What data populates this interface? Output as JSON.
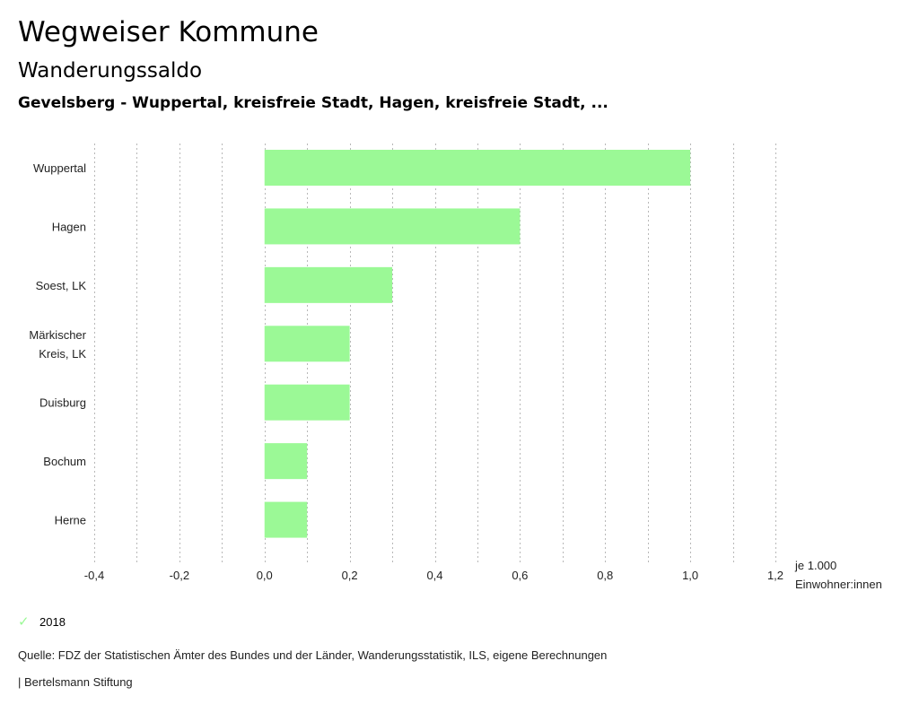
{
  "header": {
    "title": "Wegweiser Kommune",
    "subtitle": "Wanderungssaldo",
    "subsubtitle": "Gevelsberg - Wuppertal, kreisfreie Stadt, Hagen, kreisfreie Stadt, ..."
  },
  "chart_data": {
    "type": "bar",
    "orientation": "horizontal",
    "categories": [
      "Wuppertal",
      "Hagen",
      "Soest, LK",
      "Märkischer Kreis, LK",
      "Duisburg",
      "Bochum",
      "Herne"
    ],
    "category_lines": [
      [
        "Wuppertal"
      ],
      [
        "Hagen"
      ],
      [
        "Soest, LK"
      ],
      [
        "Märkischer",
        "Kreis, LK"
      ],
      [
        "Duisburg"
      ],
      [
        "Bochum"
      ],
      [
        "Herne"
      ]
    ],
    "series": [
      {
        "name": "2018",
        "values": [
          1.0,
          0.6,
          0.3,
          0.2,
          0.2,
          0.1,
          0.1
        ],
        "color": "#9bf996"
      }
    ],
    "xlim": [
      -0.4,
      1.2
    ],
    "xticks": [
      -0.4,
      -0.2,
      0.0,
      0.2,
      0.4,
      0.6,
      0.8,
      1.0,
      1.2
    ],
    "xtick_labels": [
      "-0,4",
      "-0,2",
      "0,0",
      "0,2",
      "0,4",
      "0,6",
      "0,8",
      "1,0",
      "1,2"
    ],
    "grid_step": 0.1,
    "grid": true,
    "xlabel_lines": [
      "je 1.000",
      "Einwohner:innen"
    ],
    "legend_position": "bottom-left"
  },
  "legend": {
    "label": "2018",
    "icon": "check-icon"
  },
  "footer": {
    "source": "Quelle: FDZ der Statistischen Ämter des Bundes und der Länder, Wanderungsstatistik, ILS, eigene Berechnungen",
    "credit": "| Bertelsmann Stiftung"
  }
}
